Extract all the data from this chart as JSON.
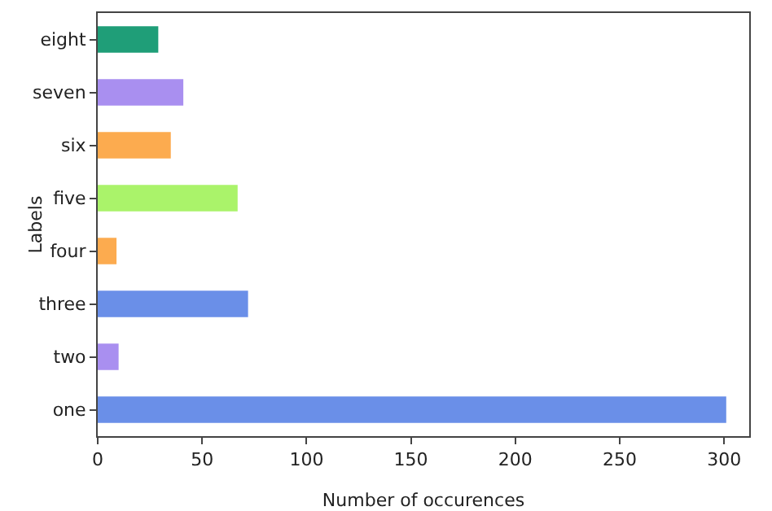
{
  "chart_data": {
    "type": "bar",
    "orientation": "horizontal",
    "xlabel": "Number of occurences",
    "ylabel": "Labels",
    "categories": [
      "eight",
      "seven",
      "six",
      "five",
      "four",
      "three",
      "two",
      "one"
    ],
    "values": [
      29,
      41,
      35,
      67,
      9,
      72,
      10,
      301
    ],
    "colors": [
      "#1f9e78",
      "#a98ff0",
      "#fcab4f",
      "#aaf36a",
      "#fcab4f",
      "#6a8fe8",
      "#a98ff0",
      "#6a8fe8"
    ],
    "xlim": [
      0,
      312
    ],
    "xticks": [
      0,
      50,
      100,
      150,
      200,
      250,
      300
    ],
    "grid": false,
    "legend": false
  }
}
